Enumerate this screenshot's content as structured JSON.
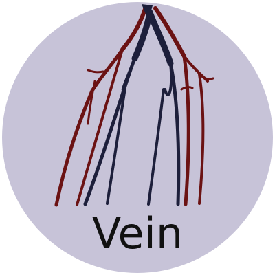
{
  "icon": {
    "name": "vein-icon",
    "label": "Vein"
  },
  "colors": {
    "circle": "#c7c3d8",
    "artery": "#6b1213",
    "vein": "#1d1f3b",
    "text": "#111111"
  }
}
